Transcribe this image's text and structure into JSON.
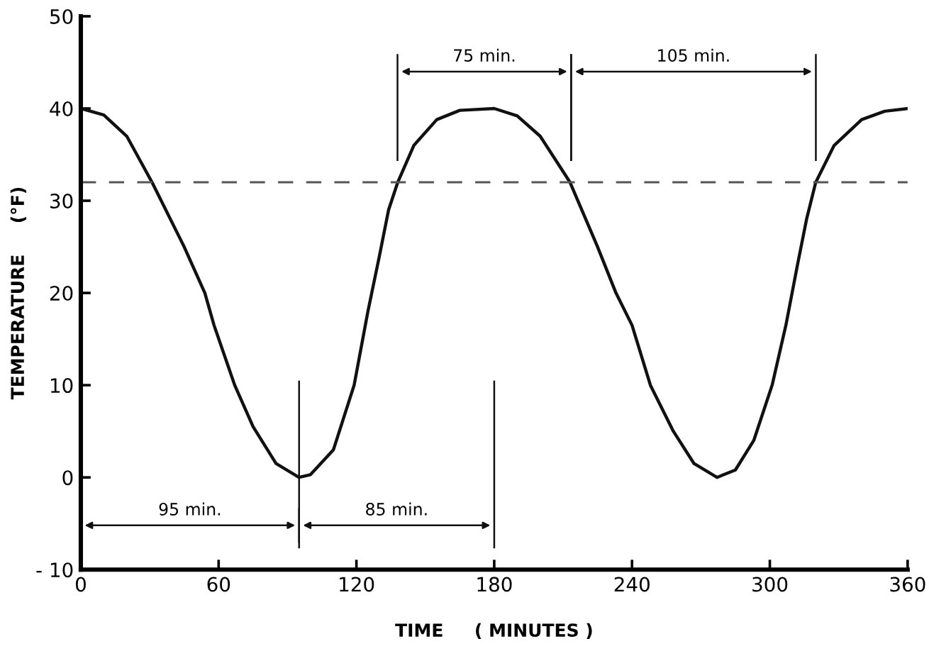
{
  "chart_data": {
    "type": "line",
    "xlabel": "TIME     ( MINUTES )",
    "ylabel": "TEMPERATURE     (°F)",
    "series": [
      {
        "color": "#111111",
        "x": [
          0,
          10,
          20,
          31,
          35,
          45,
          54,
          58,
          67,
          75,
          85,
          95,
          100,
          110,
          119,
          125,
          130,
          134,
          138,
          145,
          155,
          165,
          180,
          190,
          200,
          213,
          225,
          233,
          240,
          248,
          258,
          267,
          277,
          285,
          293,
          301,
          307,
          312,
          316,
          320,
          328,
          340,
          350,
          360
        ],
        "values": [
          40,
          39.3,
          37,
          32,
          30,
          25,
          20,
          16.5,
          10,
          5.5,
          1.5,
          0,
          0.3,
          3,
          10,
          18,
          24,
          29,
          32,
          36,
          38.8,
          39.8,
          40,
          39.2,
          37,
          32,
          25,
          20,
          16.5,
          10,
          5,
          1.5,
          0,
          0.8,
          4,
          10,
          16.5,
          23,
          28,
          32,
          36,
          38.8,
          39.7,
          40
        ]
      }
    ],
    "xlim": [
      0,
      360
    ],
    "xticks": [
      0,
      60,
      120,
      180,
      240,
      300,
      360
    ],
    "ylim": [
      -10,
      50
    ],
    "yticks": [
      {
        "value": -10,
        "label": "- 10"
      },
      0,
      10,
      20,
      30,
      40,
      50
    ],
    "ref_lines": [
      {
        "axis": "y",
        "value": 32,
        "line_style": "dashed",
        "color": "#555555"
      }
    ],
    "annotations": [
      "95 min.",
      "85 min.",
      "75 min.",
      "105 min."
    ],
    "grid": false,
    "legend": false,
    "line_style": "solid",
    "marker": "none"
  }
}
